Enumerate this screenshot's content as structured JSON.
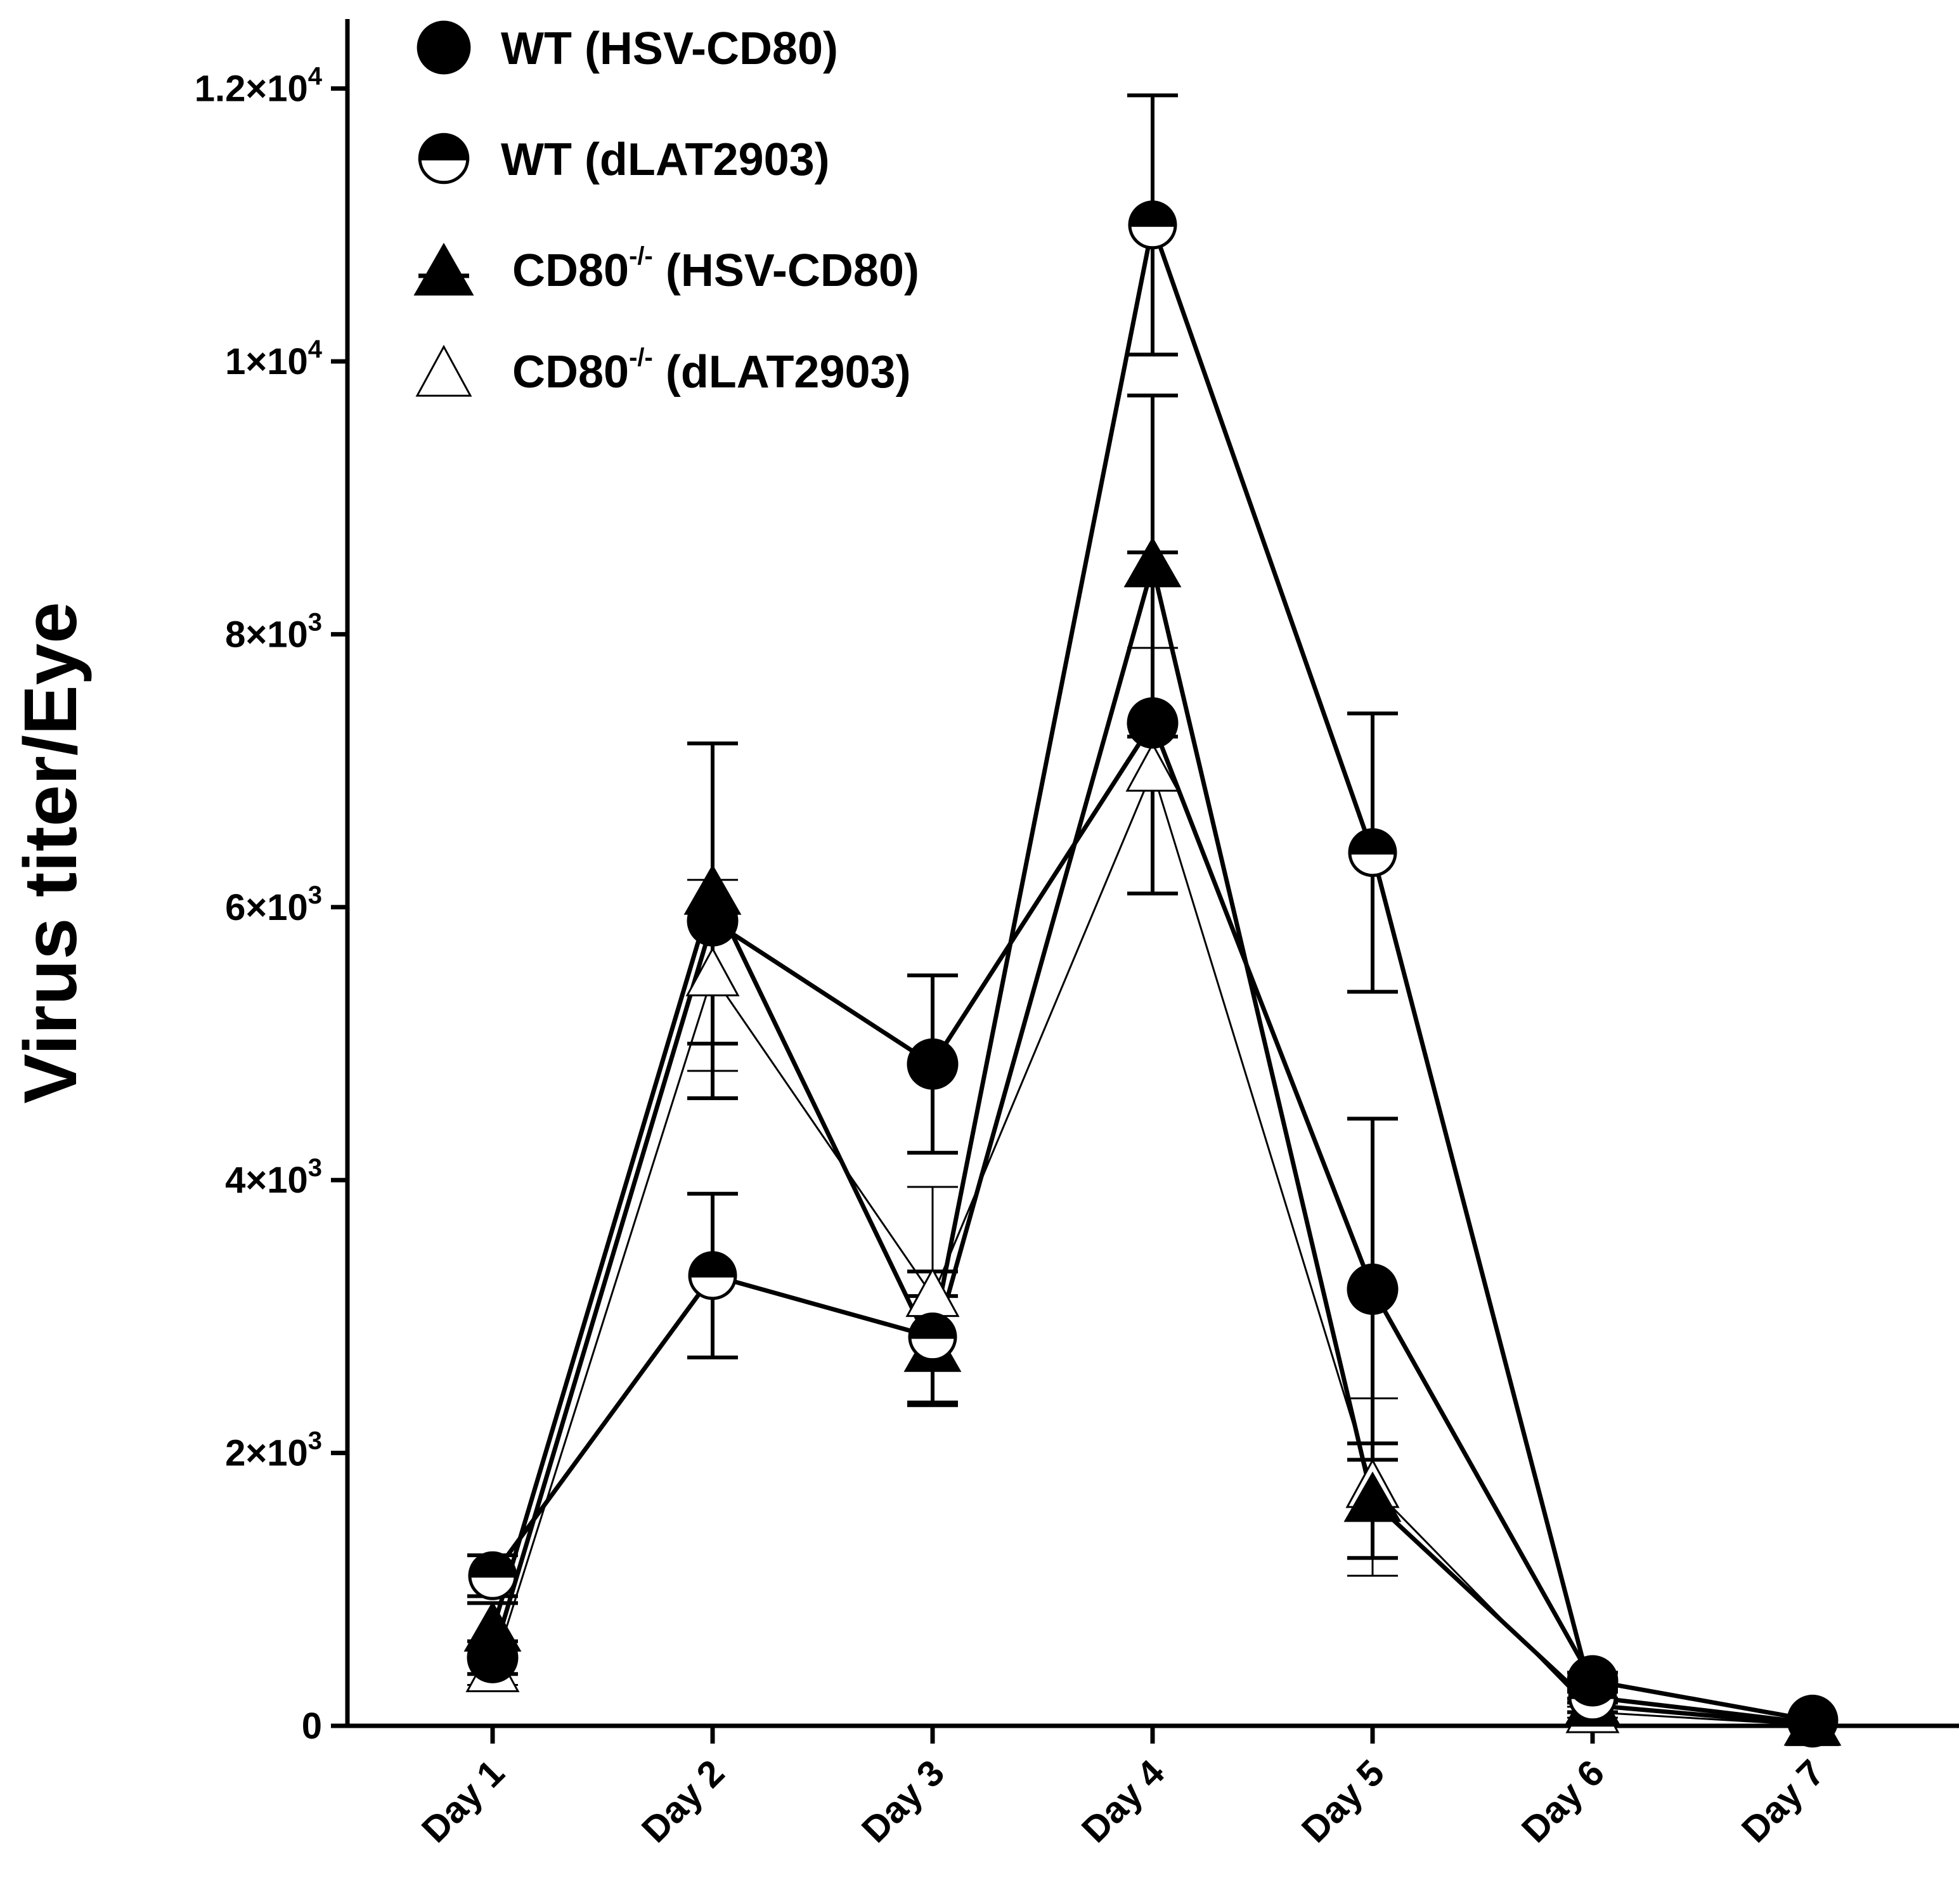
{
  "chart_data": {
    "type": "line",
    "title": "",
    "xlabel": "",
    "ylabel": "Virus titer/Eye",
    "ylim": [
      0,
      12500
    ],
    "categories": [
      "Day 1",
      "Day 2",
      "Day 3",
      "Day 4",
      "Day 5",
      "Day 6",
      "Day 7"
    ],
    "y_ticks": [
      {
        "value": 0,
        "label": "0"
      },
      {
        "value": 2000,
        "label": "2×10",
        "exp": "3"
      },
      {
        "value": 4000,
        "label": "4×10",
        "exp": "3"
      },
      {
        "value": 6000,
        "label": "6×10",
        "exp": "3"
      },
      {
        "value": 8000,
        "label": "8×10",
        "exp": "3"
      },
      {
        "value": 10000,
        "label": "1×10",
        "exp": "4"
      },
      {
        "value": 12000,
        "label": "1.2×10",
        "exp": "4"
      }
    ],
    "series": [
      {
        "name": "WT (HSV-CD80)",
        "label_main": "WT (HSV-CD80)",
        "label_sup": "",
        "label_rest": "",
        "marker": "circle-filled",
        "values": [
          500,
          5900,
          4850,
          7350,
          3200,
          330,
          40
        ],
        "errors": [
          120,
          1300,
          650,
          1250,
          1250,
          60,
          20
        ]
      },
      {
        "name": "WT (dLAT2903)",
        "label_main": "WT (dLAT2903)",
        "label_sup": "",
        "label_rest": "",
        "marker": "circle-half",
        "values": [
          1100,
          3300,
          2850,
          11000,
          6400,
          210,
          20
        ],
        "errors": [
          150,
          600,
          480,
          950,
          1020,
          40,
          10
        ]
      },
      {
        "name": "CD80-/- (HSV-CD80)",
        "label_main": "CD80",
        "label_sup": "-/-",
        "label_rest": " (HSV-CD80)",
        "marker": "triangle-filled",
        "values": [
          700,
          6100,
          2750,
          8500,
          1650,
          150,
          10
        ],
        "errors": [
          200,
          1100,
          400,
          1250,
          420,
          50,
          10
        ]
      },
      {
        "name": "CD80-/- (dLAT2903)",
        "label_main": "CD80",
        "label_sup": "-/-",
        "label_rest": " (dLAT2903)",
        "marker": "triangle-open",
        "values": [
          400,
          5500,
          3150,
          7000,
          1750,
          100,
          5
        ],
        "errors": [
          100,
          700,
          800,
          900,
          650,
          40,
          5
        ]
      }
    ]
  }
}
